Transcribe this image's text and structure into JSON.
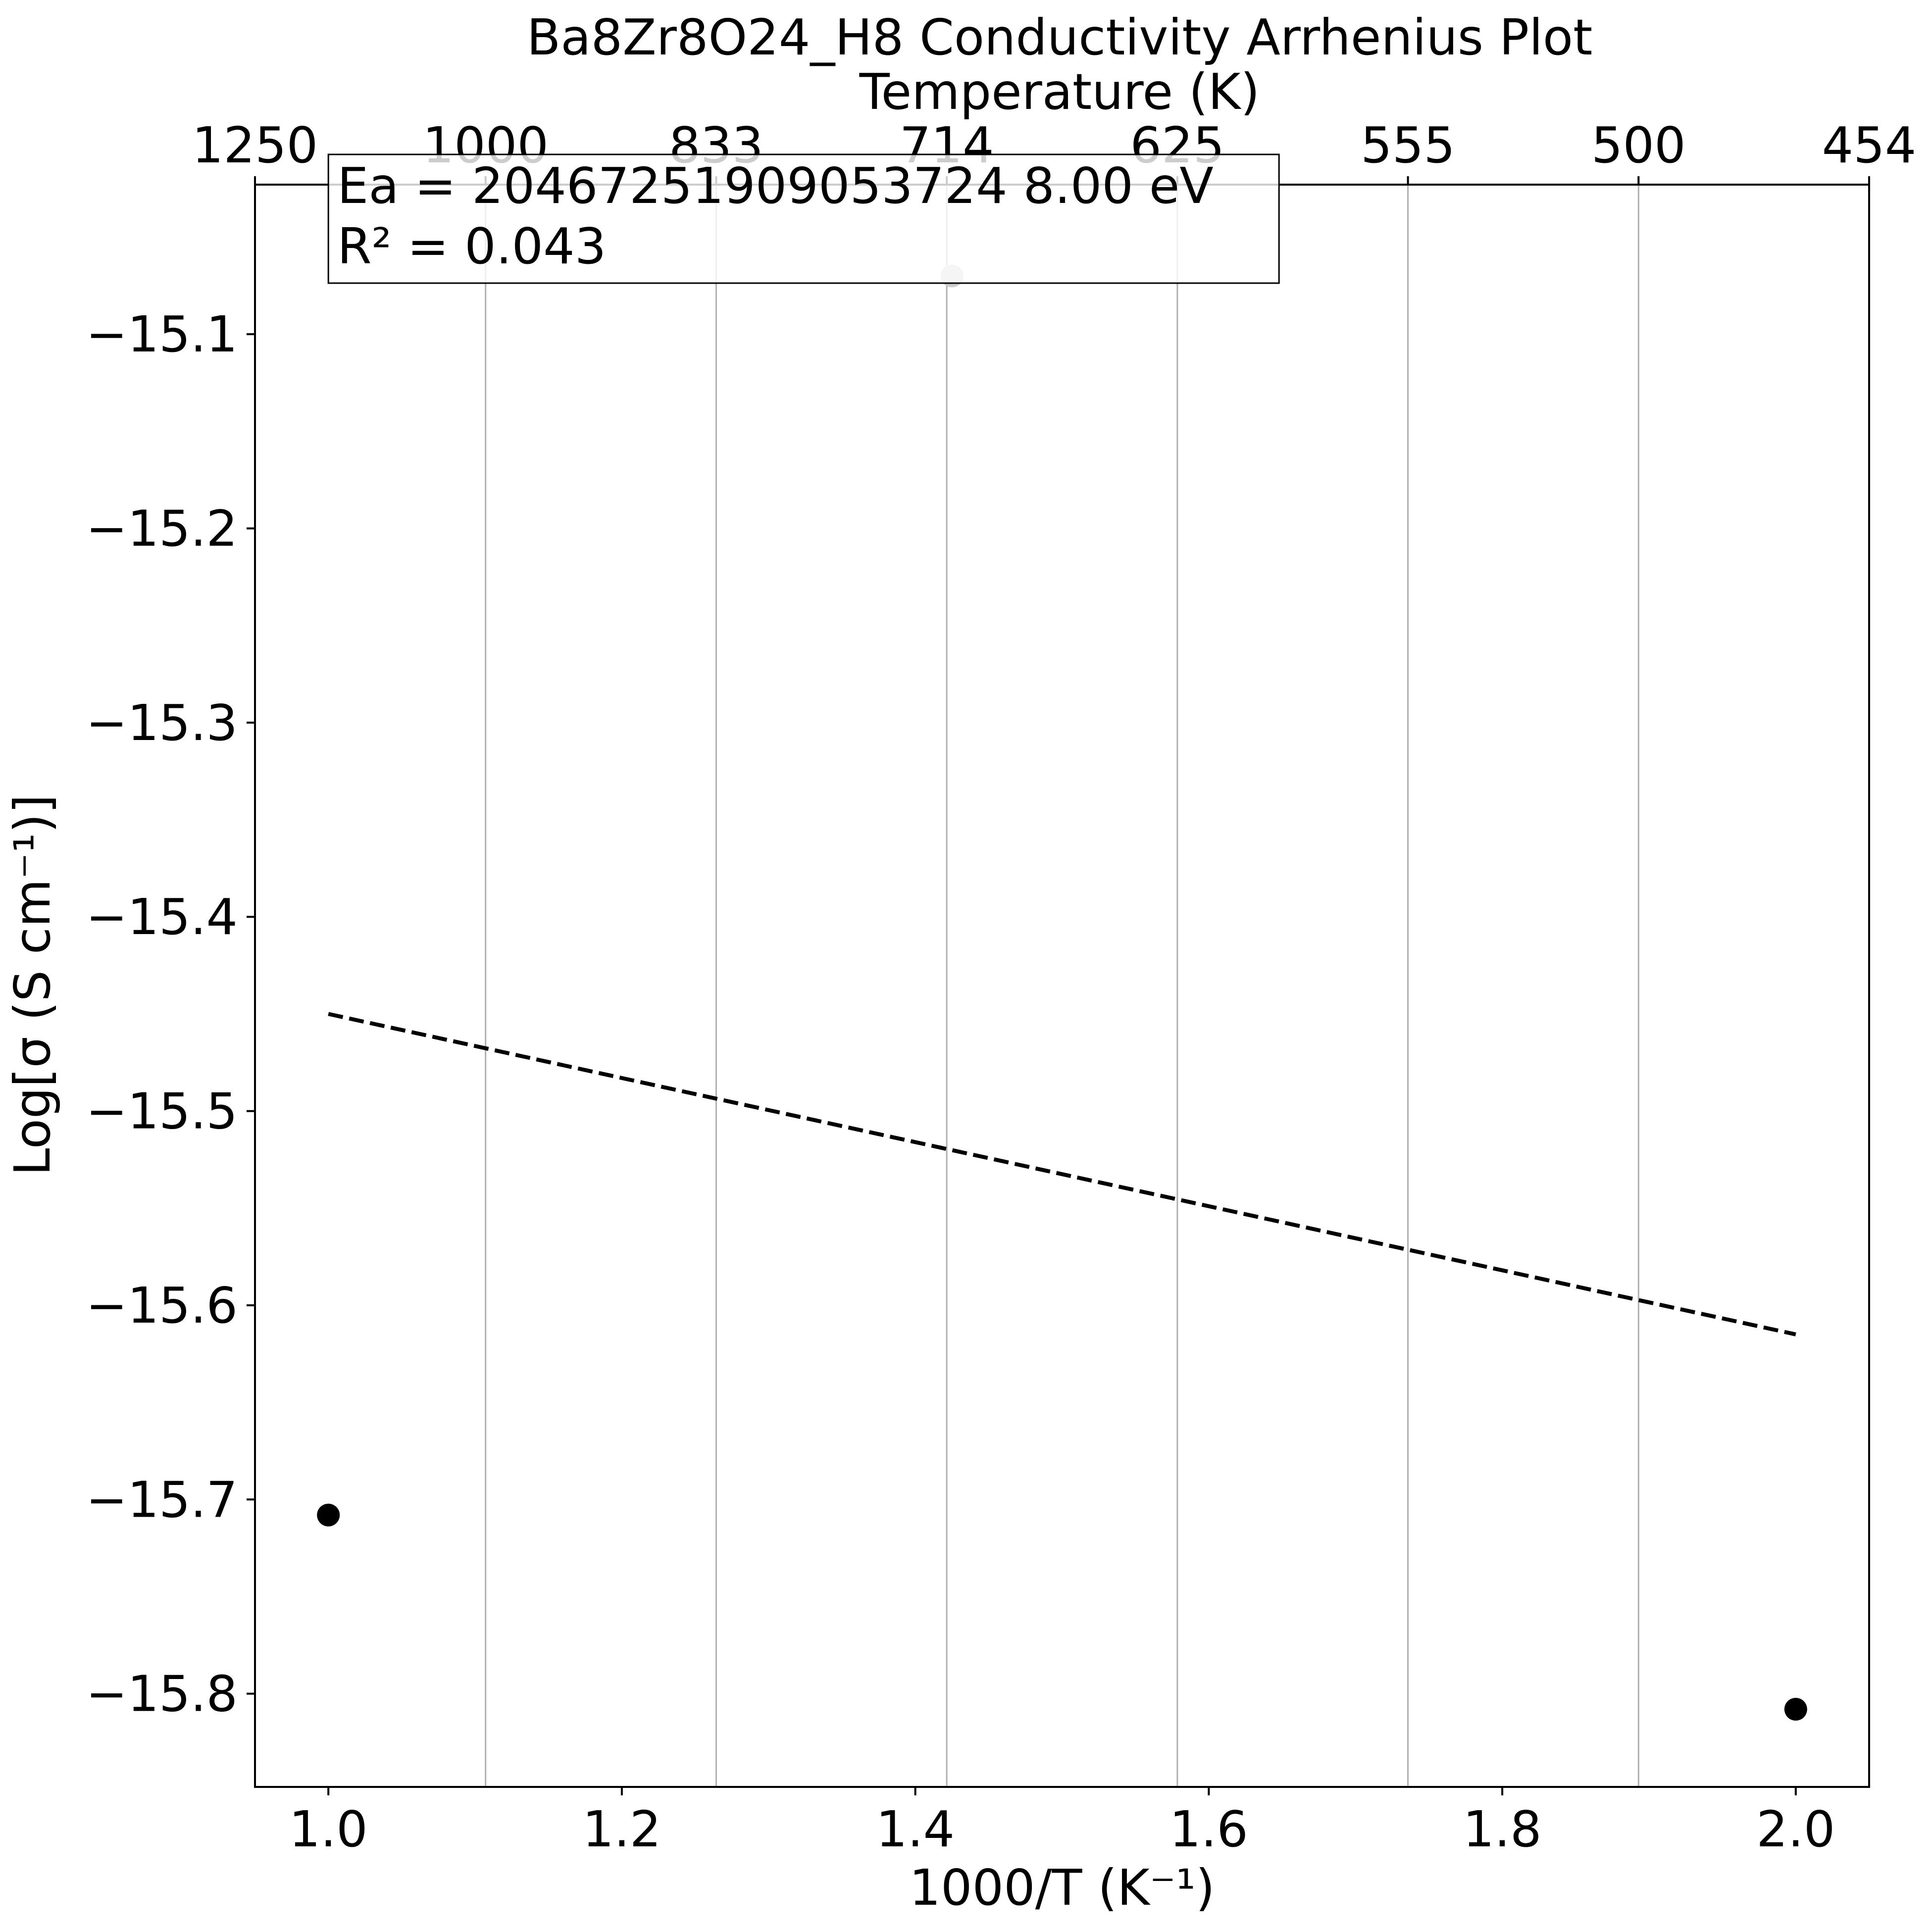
{
  "chart_data": {
    "type": "scatter",
    "title": "Ba8Zr8O24_H8 Conductivity Arrhenius Plot",
    "xlabel": "1000/T (K⁻¹)",
    "ylabel": "Log[σ (S cm⁻¹)]",
    "top_xlabel": "Temperature (K)",
    "xlim": [
      0.95,
      2.05
    ],
    "ylim": [
      -15.848,
      -15.023
    ],
    "x_ticks": [
      1.0,
      1.2,
      1.4,
      1.6,
      1.8,
      2.0
    ],
    "x_tick_labels": [
      "1.0",
      "1.2",
      "1.4",
      "1.6",
      "1.8",
      "2.0"
    ],
    "y_ticks": [
      -15.1,
      -15.2,
      -15.3,
      -15.4,
      -15.5,
      -15.6,
      -15.7,
      -15.8
    ],
    "y_tick_labels": [
      "−15.1",
      "−15.2",
      "−15.3",
      "−15.4",
      "−15.5",
      "−15.6",
      "−15.7",
      "−15.8"
    ],
    "top_ticks": [
      {
        "label": "1250",
        "x": 0.8
      },
      {
        "label": "1000",
        "x": 1.0
      },
      {
        "label": "833",
        "x": 1.2
      },
      {
        "label": "714",
        "x": 1.4
      },
      {
        "label": "625",
        "x": 1.6
      },
      {
        "label": "555",
        "x": 1.8
      },
      {
        "label": "500",
        "x": 2.0
      },
      {
        "label": "454",
        "x": 2.2
      }
    ],
    "top_axis_scale": "x_top = 0.8 + 1.4 × (x − 0.95) / 1.1",
    "grid": "vertical lines at the top axis ticks",
    "points": [
      {
        "x": 1.0,
        "y": -15.708,
        "color": "#000000"
      },
      {
        "x": 2.0,
        "y": -15.808,
        "color": "#000000"
      },
      {
        "x": 1.425,
        "y": -15.07,
        "color": "#cccccc"
      }
    ],
    "fit_line": {
      "x": [
        1.0,
        2.0
      ],
      "y": [
        -15.45,
        -15.615
      ],
      "style": "dashed",
      "color": "#000000"
    },
    "annotation": {
      "lines": [
        "Ea = 20467251909053724 8.00 eV",
        "R² = 0.043"
      ]
    }
  }
}
